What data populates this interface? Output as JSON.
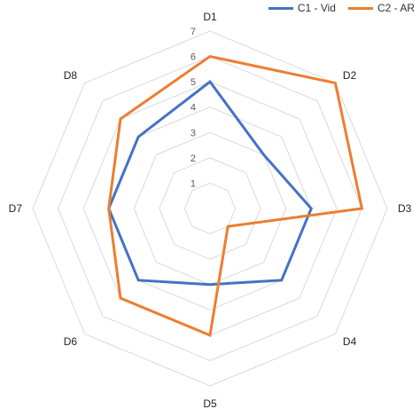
{
  "chart_data": {
    "type": "radar",
    "categories": [
      "D1",
      "D2",
      "D3",
      "D4",
      "D5",
      "D6",
      "D7",
      "D8"
    ],
    "rlim": [
      0,
      7
    ],
    "tick_labels": [
      "1",
      "2",
      "3",
      "4",
      "5",
      "6",
      "7"
    ],
    "grid": true,
    "legend_position": "top-right",
    "series": [
      {
        "name": "C1 - Vid",
        "color": "#4472C4",
        "values": [
          5,
          3,
          4,
          4,
          3,
          4,
          4,
          4
        ]
      },
      {
        "name": "C2 - AR",
        "color": "#ED7D31",
        "values": [
          6,
          7,
          6,
          1,
          5,
          5,
          4,
          5
        ]
      }
    ]
  }
}
